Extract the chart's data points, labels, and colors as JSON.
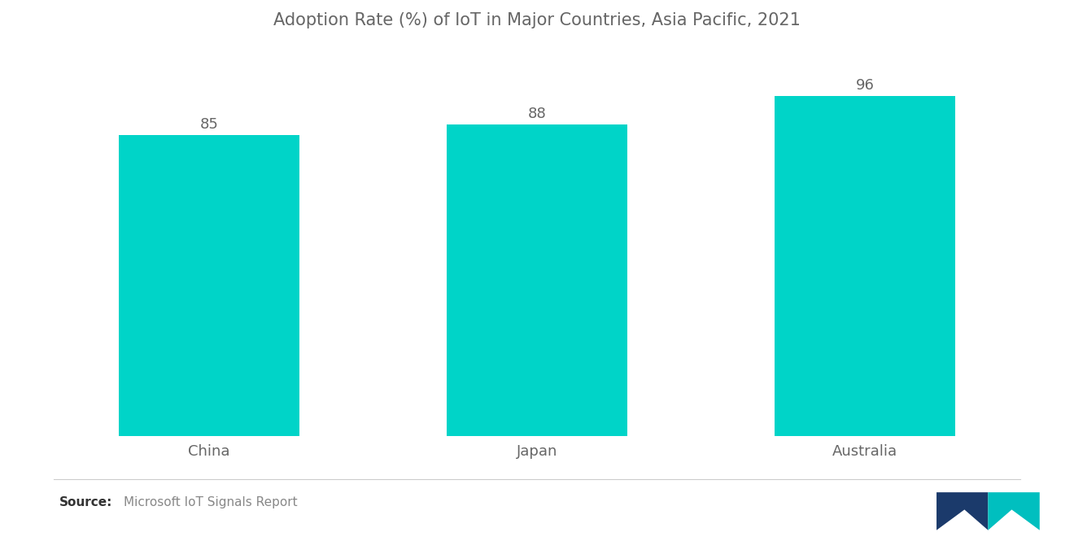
{
  "title": "Adoption Rate (%) of IoT in Major Countries, Asia Pacific, 2021",
  "categories": [
    "China",
    "Japan",
    "Australia"
  ],
  "values": [
    85,
    88,
    96
  ],
  "bar_color": "#00D4C8",
  "bar_width": 0.55,
  "ylim": [
    0,
    108
  ],
  "title_fontsize": 15,
  "label_fontsize": 13,
  "value_fontsize": 13,
  "source_bold": "Source:",
  "source_text": "  Microsoft IoT Signals Report",
  "background_color": "#ffffff",
  "text_color": "#666666",
  "source_fontsize": 11,
  "logo_left_color": "#1B3A6B",
  "logo_right_color": "#00BFBF"
}
